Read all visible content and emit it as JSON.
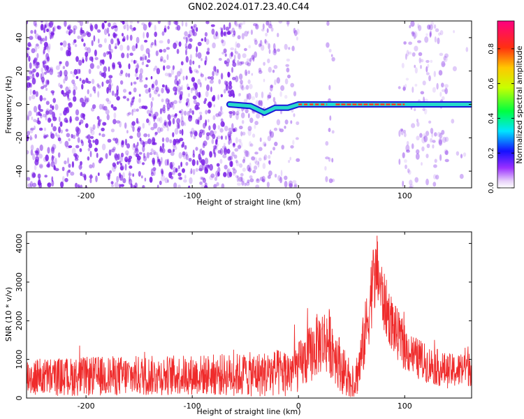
{
  "title": "GN02.2024.017.23.40.C44",
  "colors": {
    "scatter": "#7a1fe6",
    "snr": "#ef2b2b",
    "ridge_outline": "#1c18d8",
    "ridge_mid": "#27d9c9",
    "ridge_core": "#ff3a1a"
  },
  "chart_data": [
    {
      "type": "heatmap",
      "xlabel": "Height of straight line (km)",
      "ylabel": "Frequency (Hz)",
      "xlim": [
        -256,
        163
      ],
      "ylim": [
        -50,
        50
      ],
      "xticks": [
        -200,
        -100,
        0,
        100
      ],
      "yticks": [
        -40,
        -20,
        0,
        20,
        40
      ],
      "grid": false,
      "colorbar": {
        "label": "Normalized spectral amplitude",
        "range": [
          0.0,
          0.96
        ],
        "ticks": [
          "0.0",
          "0.2",
          "0.4",
          "0.6",
          "0.8"
        ],
        "colormap": "hsv"
      },
      "ridge": {
        "description_values": [
          {
            "x": -65,
            "y": 0
          },
          {
            "x": -45,
            "y": -1
          },
          {
            "x": -32,
            "y": -5
          },
          {
            "x": -22,
            "y": -2
          },
          {
            "x": -10,
            "y": -2
          },
          {
            "x": 0,
            "y": 0
          },
          {
            "x": 30,
            "y": 0
          },
          {
            "x": 163,
            "y": 0
          }
        ],
        "peak_amplitude_x_range": [
          0,
          100
        ]
      },
      "empty_bands_x": [
        [
          0,
          25
        ],
        [
          33,
          95
        ]
      ],
      "noise_columns_x": [
        [
          25,
          33
        ],
        [
          95,
          140
        ]
      ]
    },
    {
      "type": "line",
      "xlabel": "Height of straight line (km)",
      "ylabel": "SNR (10 * v/v)",
      "xlim": [
        -256,
        163
      ],
      "ylim": [
        0,
        4300
      ],
      "xticks": [
        -200,
        -100,
        0,
        100
      ],
      "yticks": [
        0,
        1000,
        2000,
        3000,
        4000
      ],
      "grid": false,
      "envelope": {
        "x": [
          -256,
          -220,
          -180,
          -140,
          -100,
          -60,
          -30,
          -10,
          0,
          10,
          20,
          28,
          35,
          45,
          52,
          58,
          65,
          70,
          75,
          80,
          90,
          100,
          110,
          120,
          130,
          140,
          150,
          163
        ],
        "mean": [
          550,
          550,
          570,
          580,
          600,
          600,
          620,
          660,
          800,
          1100,
          1450,
          1500,
          1150,
          500,
          350,
          900,
          2000,
          3000,
          3200,
          2500,
          1800,
          1300,
          1050,
          900,
          800,
          700,
          700,
          900
        ],
        "amp": [
          500,
          500,
          520,
          520,
          520,
          560,
          600,
          650,
          650,
          750,
          850,
          900,
          800,
          550,
          450,
          700,
          900,
          1000,
          900,
          800,
          700,
          600,
          550,
          500,
          480,
          450,
          450,
          600
        ],
        "max_peak": {
          "x": 74,
          "y": 4200
        }
      }
    }
  ]
}
